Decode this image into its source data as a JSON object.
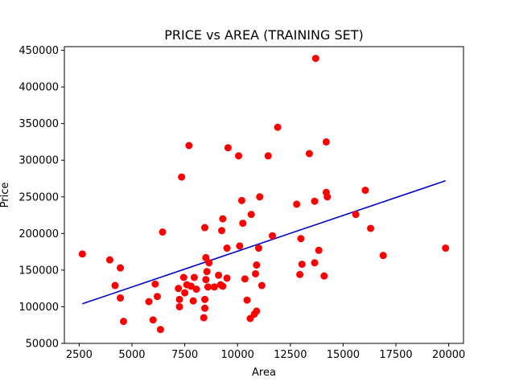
{
  "chart_data": {
    "type": "scatter",
    "title": "PRICE vs AREA (TRAINING SET)",
    "xlabel": "Area",
    "ylabel": "Price",
    "xlim": [
      1800,
      20700
    ],
    "ylim": [
      50000,
      455000
    ],
    "xticks": [
      2500,
      5000,
      7500,
      10000,
      12500,
      15000,
      17500,
      20000
    ],
    "yticks": [
      50000,
      100000,
      150000,
      200000,
      250000,
      300000,
      350000,
      400000,
      450000
    ],
    "grid": false,
    "colors": {
      "points": "#ff0000",
      "line": "#0000cc",
      "axes": "#000000",
      "background": "#ffffff"
    },
    "series": [
      {
        "type": "scatter",
        "points": [
          [
            2650,
            172000
          ],
          [
            3950,
            164000
          ],
          [
            4200,
            129000
          ],
          [
            4450,
            112000
          ],
          [
            4450,
            153000
          ],
          [
            4600,
            80000
          ],
          [
            5800,
            107000
          ],
          [
            6000,
            82000
          ],
          [
            6100,
            131000
          ],
          [
            6200,
            114000
          ],
          [
            6350,
            69000
          ],
          [
            6450,
            202000
          ],
          [
            7200,
            125000
          ],
          [
            7250,
            100000
          ],
          [
            7250,
            110000
          ],
          [
            7350,
            277000
          ],
          [
            7450,
            140000
          ],
          [
            7500,
            119000
          ],
          [
            7600,
            130000
          ],
          [
            7700,
            320000
          ],
          [
            7800,
            128000
          ],
          [
            7900,
            108000
          ],
          [
            7950,
            140000
          ],
          [
            8050,
            124000
          ],
          [
            8400,
            85000
          ],
          [
            8450,
            98000
          ],
          [
            8450,
            110000
          ],
          [
            8450,
            208000
          ],
          [
            8500,
            137000
          ],
          [
            8500,
            167000
          ],
          [
            8550,
            148000
          ],
          [
            8600,
            127000
          ],
          [
            8650,
            160000
          ],
          [
            8900,
            127000
          ],
          [
            9100,
            143000
          ],
          [
            9200,
            130000
          ],
          [
            9250,
            204000
          ],
          [
            9300,
            128000
          ],
          [
            9300,
            220000
          ],
          [
            9500,
            139000
          ],
          [
            9500,
            180000
          ],
          [
            9550,
            317000
          ],
          [
            10050,
            306000
          ],
          [
            10100,
            183000
          ],
          [
            10200,
            245000
          ],
          [
            10250,
            214000
          ],
          [
            10350,
            138000
          ],
          [
            10450,
            109000
          ],
          [
            10600,
            84000
          ],
          [
            10650,
            226000
          ],
          [
            10800,
            90000
          ],
          [
            10850,
            145000
          ],
          [
            10900,
            94000
          ],
          [
            10900,
            157000
          ],
          [
            11000,
            180000
          ],
          [
            11050,
            250000
          ],
          [
            11150,
            129000
          ],
          [
            11450,
            306000
          ],
          [
            11650,
            197000
          ],
          [
            11900,
            345000
          ],
          [
            12800,
            240000
          ],
          [
            12950,
            144000
          ],
          [
            13000,
            193000
          ],
          [
            13050,
            158000
          ],
          [
            13400,
            309000
          ],
          [
            13650,
            160000
          ],
          [
            13650,
            244000
          ],
          [
            13700,
            439000
          ],
          [
            13850,
            177000
          ],
          [
            14100,
            142000
          ],
          [
            14200,
            256000
          ],
          [
            14200,
            325000
          ],
          [
            14250,
            250000
          ],
          [
            15600,
            226000
          ],
          [
            16050,
            259000
          ],
          [
            16300,
            207000
          ],
          [
            16900,
            170000
          ],
          [
            19850,
            180000
          ]
        ]
      },
      {
        "type": "line",
        "x": [
          2650,
          19850
        ],
        "y": [
          104000,
          272000
        ]
      }
    ]
  }
}
